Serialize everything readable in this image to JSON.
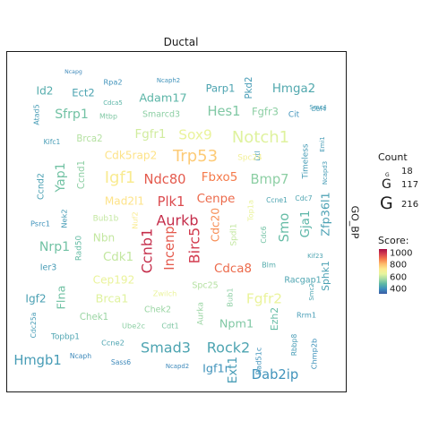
{
  "chart_data": {
    "type": "wordcloud",
    "title": "Ductal",
    "strip_label": "GO_BP",
    "legend": {
      "count_title": "Count",
      "count_glyph": "G",
      "count_values": [
        18,
        117,
        216
      ],
      "score_title": "Score:",
      "score_ticks": [
        1000,
        800,
        600,
        400
      ],
      "score_range": [
        300,
        1050
      ]
    },
    "words": [
      {
        "text": "Ncapg",
        "count": 18,
        "score": 380
      },
      {
        "text": "Rpa2",
        "count": 50,
        "score": 400
      },
      {
        "text": "Ncaph2",
        "count": 30,
        "score": 400
      },
      {
        "text": "Id2",
        "count": 110,
        "score": 460
      },
      {
        "text": "Ect2",
        "count": 100,
        "score": 440
      },
      {
        "text": "Cdca5",
        "count": 30,
        "score": 480
      },
      {
        "text": "Adam17",
        "count": 120,
        "score": 480
      },
      {
        "text": "Parp1",
        "count": 100,
        "score": 440
      },
      {
        "text": "Pkd2",
        "count": 80,
        "score": 420
      },
      {
        "text": "Hmga2",
        "count": 130,
        "score": 450
      },
      {
        "text": "Atad5",
        "count": 45,
        "score": 420
      },
      {
        "text": "Sfrp1",
        "count": 140,
        "score": 520
      },
      {
        "text": "Mtbp",
        "count": 45,
        "score": 540
      },
      {
        "text": "Smarcd3",
        "count": 70,
        "score": 560
      },
      {
        "text": "Hes1",
        "count": 150,
        "score": 540
      },
      {
        "text": "Fgfr3",
        "count": 100,
        "score": 560
      },
      {
        "text": "Cit",
        "count": 60,
        "score": 400
      },
      {
        "text": "Smc4",
        "count": 30,
        "score": 420
      },
      {
        "text": "Dbf4",
        "count": 30,
        "score": 420
      },
      {
        "text": "Kifc1",
        "count": 40,
        "score": 420
      },
      {
        "text": "Brca2",
        "count": 80,
        "score": 620
      },
      {
        "text": "Fgfr1",
        "count": 130,
        "score": 660
      },
      {
        "text": "Sox9",
        "count": 160,
        "score": 700
      },
      {
        "text": "Notch1",
        "count": 200,
        "score": 680
      },
      {
        "text": "Emi1",
        "count": 30,
        "score": 420
      },
      {
        "text": "Dtl",
        "count": 40,
        "score": 420
      },
      {
        "text": "Yap1",
        "count": 140,
        "score": 520
      },
      {
        "text": "Ccnd1",
        "count": 80,
        "score": 560
      },
      {
        "text": "Igf1",
        "count": 200,
        "score": 740
      },
      {
        "text": "Cdk5rap2",
        "count": 110,
        "score": 760
      },
      {
        "text": "Trp53",
        "count": 200,
        "score": 800
      },
      {
        "text": "Spc24",
        "count": 60,
        "score": 720
      },
      {
        "text": "Timeless",
        "count": 60,
        "score": 420
      },
      {
        "text": "Ncapd3",
        "count": 30,
        "score": 420
      },
      {
        "text": "Ccnd2",
        "count": 70,
        "score": 430
      },
      {
        "text": "Ndc80",
        "count": 150,
        "score": 940
      },
      {
        "text": "Fbxo5",
        "count": 130,
        "score": 900
      },
      {
        "text": "Bmp7",
        "count": 150,
        "score": 560
      },
      {
        "text": "Ccne1",
        "count": 40,
        "score": 440
      },
      {
        "text": "Cdc7",
        "count": 40,
        "score": 440
      },
      {
        "text": "Mad2l1",
        "count": 110,
        "score": 760
      },
      {
        "text": "Plk1",
        "count": 150,
        "score": 960
      },
      {
        "text": "Cenpe",
        "count": 130,
        "score": 920
      },
      {
        "text": "Top1a",
        "count": 50,
        "score": 700
      },
      {
        "text": "Gja1",
        "count": 130,
        "score": 480
      },
      {
        "text": "Zfp36l1",
        "count": 120,
        "score": 430
      },
      {
        "text": "Psrc1",
        "count": 50,
        "score": 400
      },
      {
        "text": "Nek2",
        "count": 50,
        "score": 420
      },
      {
        "text": "Bub1b",
        "count": 60,
        "score": 640
      },
      {
        "text": "Nuf2",
        "count": 50,
        "score": 740
      },
      {
        "text": "Aurkb",
        "count": 170,
        "score": 1000
      },
      {
        "text": "Cdc20",
        "count": 110,
        "score": 880
      },
      {
        "text": "Spdl1",
        "count": 60,
        "score": 640
      },
      {
        "text": "Cdc6",
        "count": 40,
        "score": 520
      },
      {
        "text": "Smo",
        "count": 150,
        "score": 500
      },
      {
        "text": "Nrp1",
        "count": 140,
        "score": 520
      },
      {
        "text": "Nbn",
        "count": 110,
        "score": 640
      },
      {
        "text": "Ccnb1",
        "count": 170,
        "score": 1000
      },
      {
        "text": "Incenp",
        "count": 150,
        "score": 940
      },
      {
        "text": "Birc5",
        "count": 170,
        "score": 980
      },
      {
        "text": "Rad50",
        "count": 60,
        "score": 500
      },
      {
        "text": "Cdk1",
        "count": 130,
        "score": 640
      },
      {
        "text": "Ier3",
        "count": 70,
        "score": 420
      },
      {
        "text": "Cdca8",
        "count": 130,
        "score": 920
      },
      {
        "text": "Blm",
        "count": 50,
        "score": 460
      },
      {
        "text": "Kif23",
        "count": 30,
        "score": 440
      },
      {
        "text": "Sphk1",
        "count": 90,
        "score": 430
      },
      {
        "text": "Cep192",
        "count": 110,
        "score": 700
      },
      {
        "text": "Spc25",
        "count": 70,
        "score": 620
      },
      {
        "text": "Racgap1",
        "count": 70,
        "score": 440
      },
      {
        "text": "Smc2",
        "count": 30,
        "score": 440
      },
      {
        "text": "Igf2",
        "count": 110,
        "score": 430
      },
      {
        "text": "Flna",
        "count": 120,
        "score": 520
      },
      {
        "text": "Brca1",
        "count": 120,
        "score": 680
      },
      {
        "text": "Zwilch",
        "count": 50,
        "score": 700
      },
      {
        "text": "Fgfr2",
        "count": 160,
        "score": 700
      },
      {
        "text": "Bub1",
        "count": 50,
        "score": 560
      },
      {
        "text": "Chek2",
        "count": 70,
        "score": 580
      },
      {
        "text": "Aurka",
        "count": 60,
        "score": 580
      },
      {
        "text": "Ezh2",
        "count": 90,
        "score": 500
      },
      {
        "text": "Chek1",
        "count": 80,
        "score": 580
      },
      {
        "text": "Ube2c",
        "count": 50,
        "score": 560
      },
      {
        "text": "Cdt1",
        "count": 50,
        "score": 540
      },
      {
        "text": "Npm1",
        "count": 120,
        "score": 540
      },
      {
        "text": "Rrm1",
        "count": 50,
        "score": 420
      },
      {
        "text": "Cdc25a",
        "count": 40,
        "score": 420
      },
      {
        "text": "Topbp1",
        "count": 60,
        "score": 440
      },
      {
        "text": "Ccne2",
        "count": 50,
        "score": 440
      },
      {
        "text": "Smad3",
        "count": 170,
        "score": 440
      },
      {
        "text": "Rock2",
        "count": 170,
        "score": 440
      },
      {
        "text": "Rbbp8",
        "count": 40,
        "score": 420
      },
      {
        "text": "Hmgb1",
        "count": 150,
        "score": 420
      },
      {
        "text": "Ncaph",
        "count": 40,
        "score": 380
      },
      {
        "text": "Sass6",
        "count": 40,
        "score": 380
      },
      {
        "text": "Ncapd2",
        "count": 30,
        "score": 380
      },
      {
        "text": "Igf1r",
        "count": 120,
        "score": 400
      },
      {
        "text": "Ext1",
        "count": 130,
        "score": 420
      },
      {
        "text": "Rad51c",
        "count": 50,
        "score": 400
      },
      {
        "text": "Chmp2b",
        "count": 50,
        "score": 400
      },
      {
        "text": "Dab2ip",
        "count": 150,
        "score": 400
      }
    ]
  }
}
